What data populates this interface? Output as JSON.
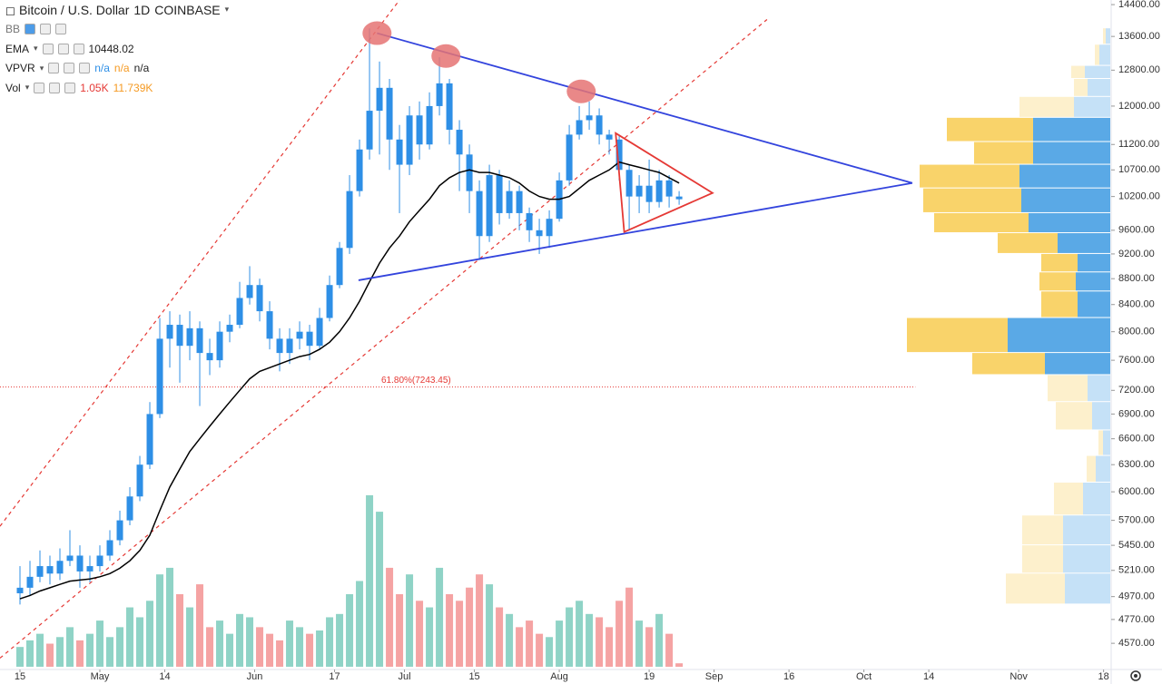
{
  "chart_data": {
    "type": "candlestick",
    "title": "Bitcoin / U.S. Dollar",
    "interval": "1D",
    "exchange": "COINBASE",
    "legend": {
      "bb": "BB",
      "ema": {
        "name": "EMA",
        "value": 10448.02
      },
      "vpvr": {
        "name": "VPVR",
        "values": [
          "n/a",
          "n/a",
          "n/a"
        ]
      },
      "vol": {
        "name": "Vol",
        "value": {
          "value": 1.05,
          "label": "1.05K"
        },
        "ma": {
          "value": 11.739,
          "label": "11.739K"
        }
      }
    },
    "x": [
      0,
      2,
      4,
      6,
      8,
      10,
      12,
      14,
      16,
      18,
      20,
      22,
      24,
      26,
      28,
      30,
      32,
      34,
      36,
      38,
      40,
      42,
      44,
      46,
      48,
      50,
      52,
      54,
      56,
      58,
      60,
      62,
      64,
      66,
      68,
      70,
      72,
      74,
      76,
      78,
      80,
      82,
      84,
      86,
      88,
      90,
      92,
      94,
      96,
      98,
      100,
      102,
      104,
      106,
      108,
      110,
      112,
      114,
      116,
      118,
      120,
      122,
      124,
      126,
      128,
      130,
      132
    ],
    "open": [
      5000,
      5050,
      5150,
      5250,
      5180,
      5300,
      5350,
      5200,
      5250,
      5350,
      5500,
      5700,
      5950,
      6300,
      6900,
      7900,
      8100,
      7800,
      8050,
      7700,
      7600,
      8000,
      8100,
      8500,
      8700,
      8300,
      7900,
      7700,
      7900,
      8000,
      7800,
      8200,
      8700,
      9300,
      10300,
      11100,
      11900,
      12400,
      11300,
      10800,
      11800,
      11200,
      12000,
      12500,
      11500,
      11000,
      10300,
      9500,
      10600,
      9900,
      10300,
      9900,
      9600,
      9500,
      9800,
      10500,
      11400,
      11700,
      11800,
      11400,
      11300,
      10700,
      10200,
      10400,
      10100,
      10500,
      10200
    ],
    "high": [
      5250,
      5300,
      5400,
      5350,
      5420,
      5600,
      5450,
      5350,
      5450,
      5600,
      5800,
      6050,
      6400,
      7050,
      8200,
      8300,
      8250,
      8300,
      8150,
      7900,
      8150,
      8250,
      8750,
      9000,
      8800,
      8450,
      8050,
      8050,
      8150,
      8100,
      8350,
      8850,
      9400,
      10600,
      11300,
      13800,
      13000,
      12600,
      11600,
      12000,
      12100,
      12300,
      13100,
      12600,
      11700,
      11200,
      10500,
      10800,
      10700,
      10500,
      10400,
      10000,
      9800,
      9950,
      10650,
      11600,
      12000,
      12100,
      11950,
      11500,
      11400,
      10800,
      10600,
      10900,
      10700,
      10600,
      10300
    ],
    "low": [
      4900,
      4980,
      5100,
      5080,
      5120,
      5250,
      5050,
      5100,
      5200,
      5300,
      5450,
      5650,
      5900,
      6250,
      6850,
      7500,
      7300,
      7600,
      7000,
      7400,
      7500,
      7850,
      8050,
      8400,
      8150,
      7750,
      7450,
      7550,
      7750,
      7600,
      7750,
      8150,
      8650,
      9200,
      10200,
      10900,
      11000,
      10700,
      9900,
      10600,
      10900,
      11100,
      11800,
      11200,
      10300,
      9900,
      9100,
      9400,
      9700,
      9800,
      9600,
      9400,
      9200,
      9300,
      9750,
      10400,
      11300,
      11500,
      11200,
      11000,
      10500,
      9600,
      9900,
      9900,
      10000,
      10000,
      10050
    ],
    "close": [
      5050,
      5150,
      5250,
      5180,
      5300,
      5350,
      5200,
      5250,
      5350,
      5500,
      5700,
      5950,
      6300,
      6900,
      7900,
      8100,
      7800,
      8050,
      7700,
      7600,
      8000,
      8100,
      8500,
      8700,
      8300,
      7900,
      7700,
      7900,
      8000,
      7800,
      8200,
      8700,
      9300,
      10300,
      11100,
      11900,
      12400,
      11300,
      10800,
      11800,
      11200,
      12000,
      12500,
      11500,
      11000,
      10300,
      9500,
      10600,
      9900,
      10300,
      9900,
      9600,
      9500,
      9800,
      10500,
      11400,
      11700,
      11800,
      11400,
      11300,
      10700,
      10200,
      10400,
      10100,
      10500,
      10200,
      10150
    ],
    "volume": [
      6,
      8,
      10,
      7,
      9,
      12,
      8,
      10,
      14,
      9,
      12,
      18,
      15,
      20,
      28,
      30,
      22,
      18,
      25,
      12,
      14,
      10,
      16,
      15,
      12,
      10,
      8,
      14,
      12,
      10,
      11,
      15,
      16,
      22,
      26,
      52,
      47,
      30,
      22,
      28,
      20,
      18,
      30,
      22,
      20,
      24,
      28,
      25,
      18,
      16,
      12,
      14,
      10,
      9,
      14,
      18,
      20,
      16,
      15,
      12,
      20,
      24,
      14,
      12,
      16,
      10,
      1.05
    ],
    "ema": [
      4950,
      4980,
      5020,
      5050,
      5080,
      5110,
      5120,
      5130,
      5150,
      5180,
      5230,
      5300,
      5400,
      5550,
      5800,
      6050,
      6250,
      6450,
      6600,
      6750,
      6900,
      7050,
      7200,
      7350,
      7450,
      7500,
      7550,
      7600,
      7650,
      7680,
      7750,
      7850,
      8000,
      8200,
      8450,
      8750,
      9050,
      9300,
      9500,
      9750,
      9950,
      10150,
      10400,
      10550,
      10650,
      10700,
      10650,
      10650,
      10600,
      10550,
      10450,
      10300,
      10200,
      10150,
      10150,
      10200,
      10350,
      10500,
      10600,
      10700,
      10850,
      10800,
      10750,
      10700,
      10650,
      10550,
      10450
    ],
    "candle_color": "#2e8fe6",
    "ema_color": "#000000",
    "volume_up_color": "#8fd3c6",
    "volume_down_color": "#f5a3a3",
    "vol_lim": [
      0,
      55
    ],
    "xlim": [
      -4,
      218.7
    ],
    "xticks": [
      {
        "value": 0,
        "label": "15"
      },
      {
        "value": 16,
        "label": "May"
      },
      {
        "value": 29,
        "label": "14"
      },
      {
        "value": 47,
        "label": "Jun"
      },
      {
        "value": 63,
        "label": "17"
      },
      {
        "value": 77,
        "label": "Jul"
      },
      {
        "value": 91,
        "label": "15"
      },
      {
        "value": 108,
        "label": "Aug"
      },
      {
        "value": 126,
        "label": "19"
      },
      {
        "value": 139,
        "label": "Sep"
      },
      {
        "value": 154,
        "label": "16"
      },
      {
        "value": 169,
        "label": "Oct"
      },
      {
        "value": 182,
        "label": "14"
      },
      {
        "value": 200,
        "label": "Nov"
      },
      {
        "value": 217,
        "label": "18"
      }
    ],
    "ylim": [
      4360,
      14520
    ],
    "log_y": true,
    "yticks": [
      {
        "value": 14400,
        "label": "14400.00"
      },
      {
        "value": 13600,
        "label": "13600.00"
      },
      {
        "value": 12800,
        "label": "12800.00"
      },
      {
        "value": 12000,
        "label": "12000.00"
      },
      {
        "value": 11200,
        "label": "11200.00"
      },
      {
        "value": 10700,
        "label": "10700.00"
      },
      {
        "value": 10200,
        "label": "10200.00"
      },
      {
        "value": 9600,
        "label": "9600.00"
      },
      {
        "value": 9200,
        "label": "9200.00"
      },
      {
        "value": 8800,
        "label": "8800.00"
      },
      {
        "value": 8400,
        "label": "8400.00"
      },
      {
        "value": 8000,
        "label": "8000.00"
      },
      {
        "value": 7600,
        "label": "7600.00"
      },
      {
        "value": 7200,
        "label": "7200.00"
      },
      {
        "value": 6900,
        "label": "6900.00"
      },
      {
        "value": 6600,
        "label": "6600.00"
      },
      {
        "value": 6300,
        "label": "6300.00"
      },
      {
        "value": 6000,
        "label": "6000.00"
      },
      {
        "value": 5700,
        "label": "5700.00"
      },
      {
        "value": 5450,
        "label": "5450.00"
      },
      {
        "value": 5210,
        "label": "5210.00"
      },
      {
        "value": 4970,
        "label": "4970.00"
      },
      {
        "value": 4770,
        "label": "4770.00"
      },
      {
        "value": 4570,
        "label": "4570.00"
      }
    ],
    "volume_profile": {
      "bins": [
        13800,
        13400,
        12900,
        12600,
        12200,
        11750,
        11250,
        10800,
        10350,
        9900,
        9550,
        9200,
        8900,
        8600,
        8200,
        7700,
        7400,
        7050,
        6700,
        6400,
        6100,
        5750,
        5450,
        5180,
        4900
      ],
      "up": [
        5,
        12,
        28,
        25,
        40,
        85,
        85,
        100,
        98,
        90,
        58,
        36,
        38,
        36,
        113,
        72,
        25,
        20,
        8,
        16,
        30,
        52,
        52,
        50
      ],
      "down": [
        3,
        5,
        15,
        15,
        60,
        95,
        65,
        110,
        108,
        104,
        66,
        40,
        40,
        40,
        111,
        80,
        44,
        40,
        5,
        10,
        32,
        45,
        45,
        65
      ],
      "in_value_area": [
        false,
        false,
        false,
        false,
        false,
        true,
        true,
        true,
        true,
        true,
        true,
        true,
        true,
        true,
        true,
        true,
        false,
        false,
        false,
        false,
        false,
        false,
        false,
        false
      ],
      "up_color": "#5aa9e6",
      "down_color": "#f9d36a",
      "up_light_color": "#c5e1f7",
      "down_light_color": "#fdf0cc"
    },
    "drawings": {
      "trend_color": "#3344dd",
      "trend_lines": [
        [
          [
            71.5,
            13680
          ],
          [
            178.7,
            10450
          ]
        ],
        [
          [
            67.8,
            8775
          ],
          [
            178.7,
            10450
          ]
        ]
      ],
      "triangle_color": "#e53935",
      "triangle": [
        [
          119.3,
          11430
        ],
        [
          138.7,
          10265
        ],
        [
          121,
          9570
        ]
      ],
      "channel_color": "#e53935",
      "channel": [
        [
          [
            -4,
            5640
          ],
          [
            76,
            14518
          ]
        ],
        [
          [
            -4,
            4450
          ],
          [
            149.6,
            14020
          ]
        ]
      ],
      "peak_color": "#e57373",
      "peaks": [
        [
          71.5,
          13680
        ],
        [
          85.3,
          13130
        ],
        [
          112.4,
          12320
        ]
      ],
      "fib": {
        "value": 7243.45,
        "label": "61.80%(7243.45)",
        "x": [
          -4,
          179.3
        ],
        "color": "#e53935"
      }
    }
  }
}
